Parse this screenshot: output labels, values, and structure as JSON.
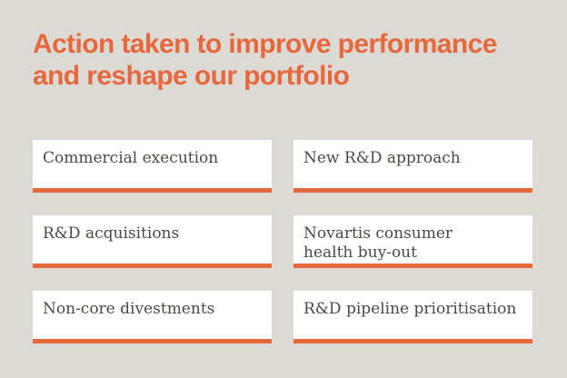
{
  "page": {
    "background_color": "#dcdad5",
    "accent_color": "#e7683c",
    "card_text_color": "#4c4843",
    "card_background_color": "#ffffff"
  },
  "heading": {
    "line1": "Action taken to improve performance",
    "line2": "and reshape our portfolio"
  },
  "cards": [
    {
      "label": "Commercial execution"
    },
    {
      "label": "New R&D approach"
    },
    {
      "label": "R&D acquisitions"
    },
    {
      "label": "Novartis consumer\nhealth buy-out"
    },
    {
      "label": "Non-core divestments"
    },
    {
      "label": "R&D pipeline prioritisation"
    }
  ]
}
